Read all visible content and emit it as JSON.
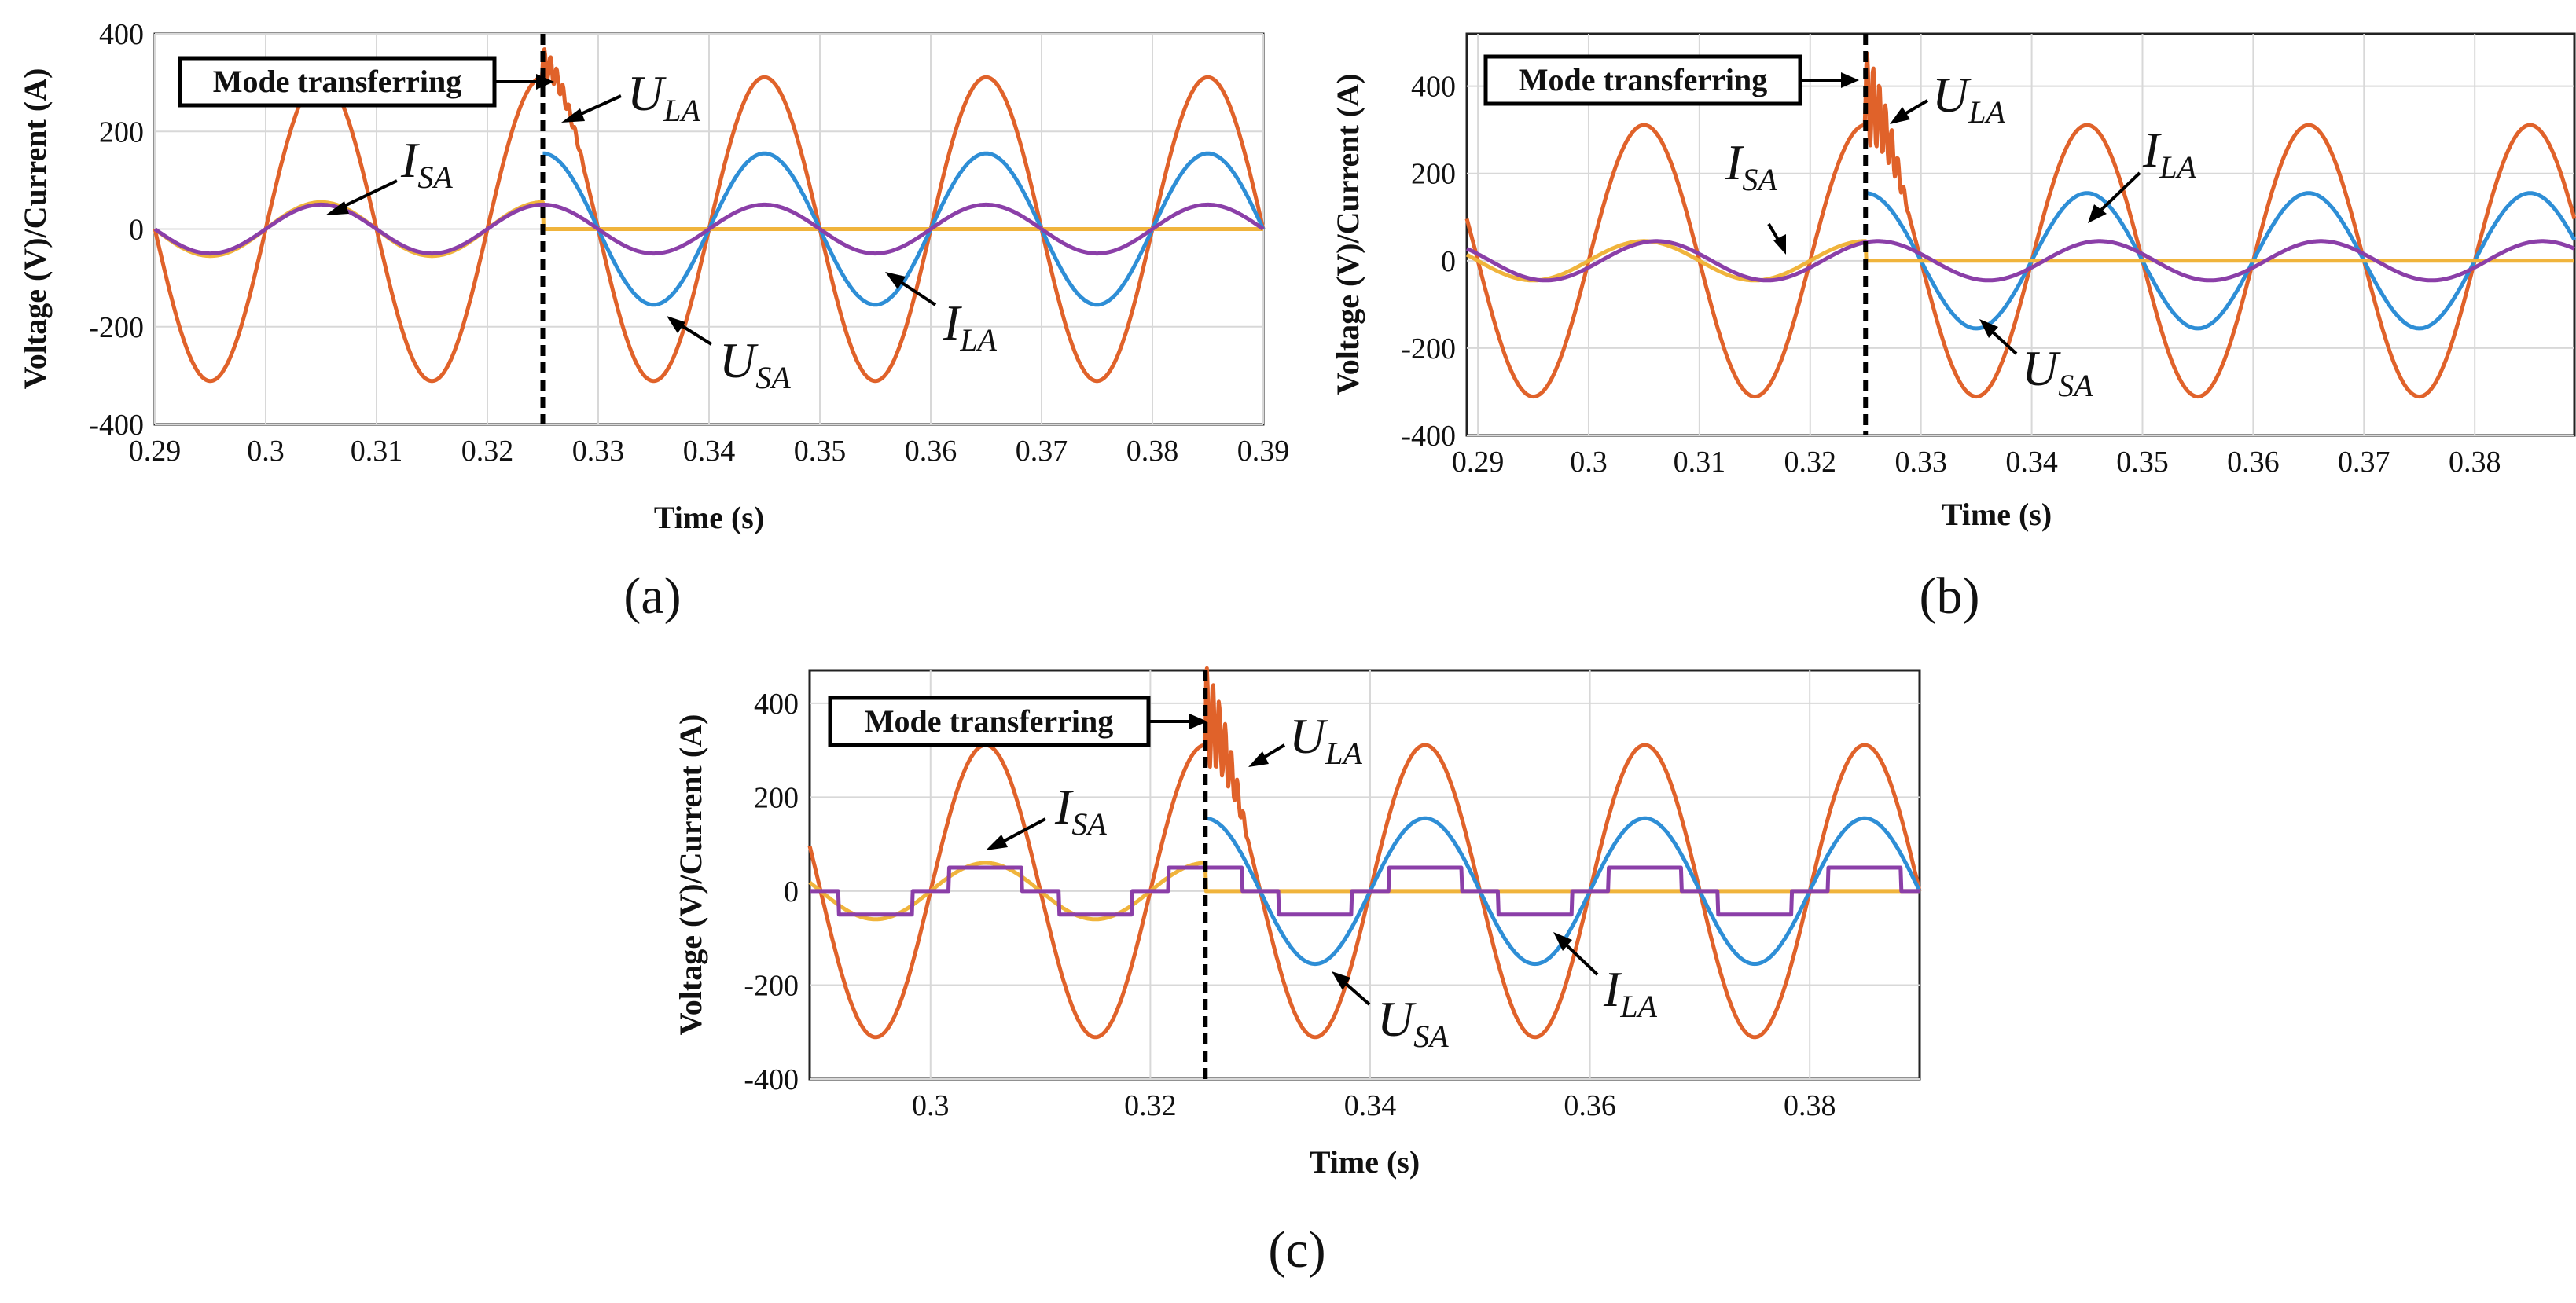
{
  "figure_labels": [
    "(a)",
    "(b)",
    "(c)"
  ],
  "colors": {
    "U_LA": "#e0622a",
    "U_SA": "#2e8ed6",
    "I_SA": "#f0b43c",
    "I_LA": "#8b3fa8",
    "grid": "#d8d8d8",
    "axis": "#222222",
    "event_line": "#000000"
  },
  "chart_data": [
    {
      "panel": "(a)",
      "type": "line",
      "xlabel": "Time (s)",
      "ylabel": "Voltage (V)/Current (A)",
      "xlim": [
        0.29,
        0.39
      ],
      "ylim": [
        -400,
        400
      ],
      "xticks": [
        0.29,
        0.3,
        0.31,
        0.32,
        0.33,
        0.34,
        0.35,
        0.36,
        0.37,
        0.38,
        0.39
      ],
      "xtick_labels": [
        "0.29",
        "0.3",
        "0.31",
        "0.32",
        "0.33",
        "0.34",
        "0.35",
        "0.36",
        "0.37",
        "0.38",
        "0.39"
      ],
      "yticks": [
        -400,
        -200,
        0,
        200,
        400
      ],
      "ytick_labels": [
        "-400",
        "-200",
        "0",
        "200",
        "400"
      ],
      "grid": true,
      "event_time": 0.325,
      "event_label": "Mode transferring",
      "series": [
        {
          "name": "U_LA",
          "amplitude": 311,
          "frequency_hz": 50,
          "phase_deg": 0
        },
        {
          "name": "U_SA",
          "amplitude": 155,
          "frequency_hz": 50,
          "phase_deg": 0,
          "starts_at": 0.325
        },
        {
          "name": "I_SA",
          "amplitude": 55,
          "frequency_hz": 50,
          "phase_deg": 0,
          "ends_at": 0.325
        },
        {
          "name": "I_LA",
          "amplitude": 50,
          "frequency_hz": 50,
          "phase_deg": 0
        }
      ],
      "annotations": [
        {
          "main": "U",
          "sub": "LA"
        },
        {
          "main": "I",
          "sub": "SA"
        },
        {
          "main": "U",
          "sub": "SA"
        },
        {
          "main": "I",
          "sub": "LA"
        }
      ]
    },
    {
      "panel": "(b)",
      "type": "line",
      "xlabel": "Time (s)",
      "ylabel": "Voltage (V)/Current (A)",
      "xlim": [
        0.289,
        0.389
      ],
      "ylim": [
        -400,
        520
      ],
      "xticks": [
        0.29,
        0.3,
        0.31,
        0.32,
        0.33,
        0.34,
        0.35,
        0.36,
        0.37,
        0.38
      ],
      "xtick_labels": [
        "0.29",
        "0.3",
        "0.31",
        "0.32",
        "0.33",
        "0.34",
        "0.35",
        "0.36",
        "0.37",
        "0.38"
      ],
      "yticks": [
        -400,
        -200,
        0,
        200,
        400
      ],
      "ytick_labels": [
        "-400",
        "-200",
        "0",
        "200",
        "400"
      ],
      "grid": true,
      "event_time": 0.325,
      "event_label": "Mode transferring",
      "series": [
        {
          "name": "U_LA",
          "amplitude": 311,
          "frequency_hz": 50,
          "phase_deg": 0
        },
        {
          "name": "U_SA",
          "amplitude": 155,
          "frequency_hz": 50,
          "phase_deg": 0,
          "starts_at": 0.325
        },
        {
          "name": "I_SA",
          "amplitude": 45,
          "frequency_hz": 50,
          "phase_deg": 0,
          "ends_at": 0.325
        },
        {
          "name": "I_LA",
          "amplitude": 45,
          "frequency_hz": 50,
          "phase_deg": -20
        }
      ],
      "annotations": [
        {
          "main": "U",
          "sub": "LA"
        },
        {
          "main": "I",
          "sub": "SA"
        },
        {
          "main": "I",
          "sub": "LA"
        },
        {
          "main": "U",
          "sub": "SA"
        }
      ]
    },
    {
      "panel": "(c)",
      "type": "line",
      "xlabel": "Time (s)",
      "ylabel": "Voltage (V)/Current (A)",
      "xlim": [
        0.289,
        0.39
      ],
      "ylim": [
        -400,
        470
      ],
      "xticks": [
        0.3,
        0.32,
        0.34,
        0.36,
        0.38
      ],
      "xtick_labels": [
        "0.3",
        "0.32",
        "0.34",
        "0.36",
        "0.38"
      ],
      "yticks": [
        -400,
        -200,
        0,
        200,
        400
      ],
      "ytick_labels": [
        "-400",
        "-200",
        "0",
        "200",
        "400"
      ],
      "grid": true,
      "event_time": 0.325,
      "event_label": "Mode transferring",
      "series": [
        {
          "name": "U_LA",
          "amplitude": 311,
          "frequency_hz": 50,
          "phase_deg": 0
        },
        {
          "name": "U_SA",
          "amplitude": 155,
          "frequency_hz": 50,
          "phase_deg": 0,
          "starts_at": 0.325
        },
        {
          "name": "I_SA",
          "amplitude": 60,
          "frequency_hz": 50,
          "phase_deg": 0,
          "ends_at": 0.325
        },
        {
          "name": "I_LA",
          "amplitude": 50,
          "frequency_hz": 50,
          "phase_deg": 0,
          "shape": "quasi-square"
        }
      ],
      "annotations": [
        {
          "main": "U",
          "sub": "LA"
        },
        {
          "main": "I",
          "sub": "SA"
        },
        {
          "main": "U",
          "sub": "SA"
        },
        {
          "main": "I",
          "sub": "LA"
        }
      ]
    }
  ]
}
